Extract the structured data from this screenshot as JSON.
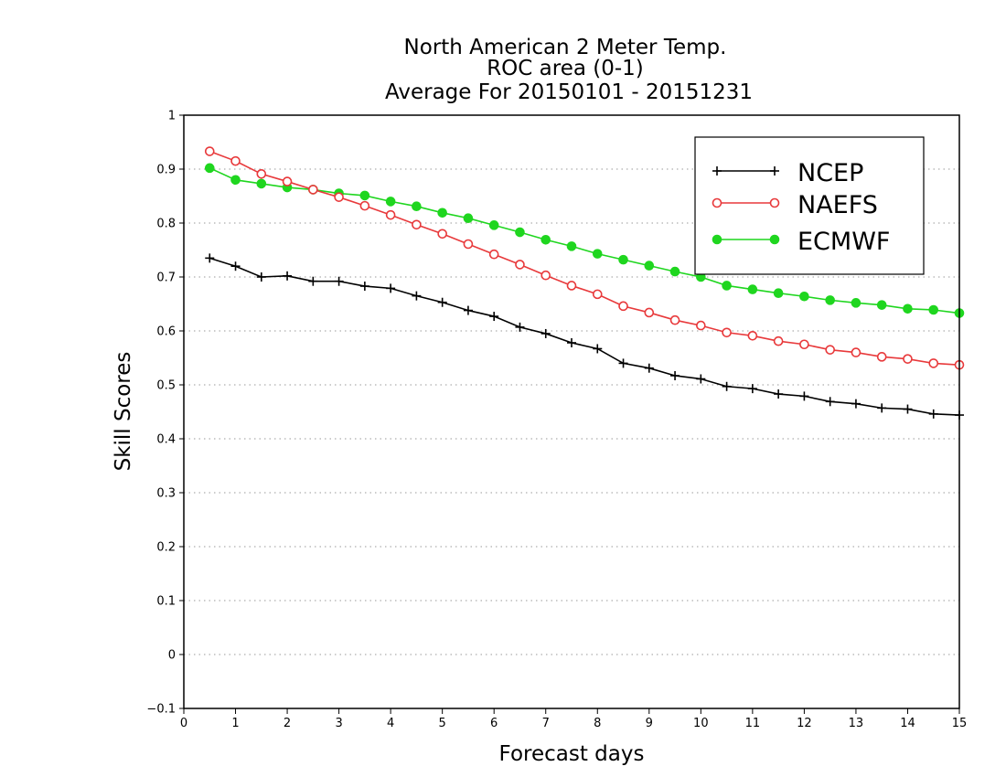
{
  "chart_data": {
    "type": "line",
    "title_lines": [
      "North American 2 Meter Temp.",
      "ROC area (0-1)",
      "Average For 20150101 - 20151231"
    ],
    "xlabel": "Forecast days",
    "ylabel": "Skill Scores",
    "xlim": [
      0,
      15
    ],
    "ylim": [
      -0.1,
      1
    ],
    "xticks": [
      0,
      1,
      2,
      3,
      4,
      5,
      6,
      7,
      8,
      9,
      10,
      11,
      12,
      13,
      14,
      15
    ],
    "xtick_labels": [
      "0",
      "1",
      "2",
      "3",
      "4",
      "5",
      "6",
      "7",
      "8",
      "9",
      "10",
      "11",
      "12",
      "13",
      "14",
      "15"
    ],
    "yticks": [
      -0.1,
      0,
      0.1,
      0.2,
      0.3,
      0.4,
      0.5,
      0.6,
      0.7,
      0.8,
      0.9,
      1
    ],
    "ytick_labels": [
      "−0.1",
      "0",
      "0.1",
      "0.2",
      "0.3",
      "0.4",
      "0.5",
      "0.6",
      "0.7",
      "0.8",
      "0.9",
      "1"
    ],
    "grid": "horizontal dotted",
    "legend_position": "top-right",
    "x": [
      0.5,
      1,
      1.5,
      2,
      2.5,
      3,
      3.5,
      4,
      4.5,
      5,
      5.5,
      6,
      6.5,
      7,
      7.5,
      8,
      8.5,
      9,
      9.5,
      10,
      10.5,
      11,
      11.5,
      12,
      12.5,
      13,
      13.5,
      14,
      14.5,
      15
    ],
    "series": [
      {
        "name": "NCEP",
        "color": "#000000",
        "marker": "plus",
        "values": [
          0.735,
          0.72,
          0.7,
          0.702,
          0.692,
          0.692,
          0.683,
          0.679,
          0.665,
          0.653,
          0.638,
          0.627,
          0.607,
          0.595,
          0.578,
          0.567,
          0.54,
          0.531,
          0.517,
          0.511,
          0.497,
          0.493,
          0.483,
          0.479,
          0.469,
          0.465,
          0.457,
          0.455,
          0.446,
          0.444
        ]
      },
      {
        "name": "NAEFS",
        "color": "#e8393b",
        "marker": "open-circle",
        "values": [
          0.933,
          0.915,
          0.891,
          0.877,
          0.862,
          0.848,
          0.832,
          0.815,
          0.797,
          0.78,
          0.761,
          0.742,
          0.723,
          0.703,
          0.684,
          0.668,
          0.646,
          0.634,
          0.62,
          0.61,
          0.597,
          0.591,
          0.581,
          0.575,
          0.565,
          0.56,
          0.552,
          0.548,
          0.54,
          0.537
        ]
      },
      {
        "name": "ECMWF",
        "color": "#1fd61f",
        "marker": "filled-circle",
        "values": [
          0.902,
          0.88,
          0.873,
          0.866,
          0.862,
          0.855,
          0.851,
          0.84,
          0.831,
          0.819,
          0.809,
          0.796,
          0.783,
          0.769,
          0.757,
          0.743,
          0.732,
          0.721,
          0.71,
          0.7,
          0.684,
          0.677,
          0.67,
          0.664,
          0.657,
          0.652,
          0.648,
          0.641,
          0.639,
          0.633
        ]
      }
    ]
  }
}
